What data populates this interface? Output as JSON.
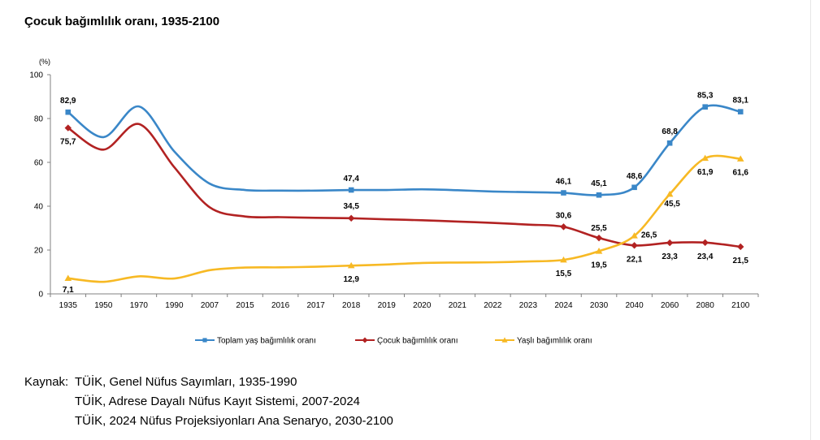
{
  "title": "Çocuk bağımlılık oranı, 1935-2100",
  "unit_label": "(%)",
  "source": {
    "label": "Kaynak:",
    "lines": [
      "TÜİK, Genel Nüfus Sayımları, 1935-1990",
      "TÜİK, Adrese Dayalı Nüfus Kayıt Sistemi, 2007-2024",
      "TÜİK, 2024 Nüfus Projeksiyonları Ana Senaryo, 2030-2100"
    ]
  },
  "chart_data": {
    "type": "line",
    "title": "Çocuk bağımlılık oranı, 1935-2100",
    "xlabel": "",
    "ylabel": "(%)",
    "ylim": [
      0,
      100
    ],
    "yticks": [
      0,
      20,
      40,
      60,
      80,
      100
    ],
    "grid": false,
    "legend_position": "bottom",
    "categories": [
      "1935",
      "1950",
      "1970",
      "1990",
      "2007",
      "2015",
      "2016",
      "2017",
      "2018",
      "2019",
      "2020",
      "2021",
      "2022",
      "2023",
      "2024",
      "2030",
      "2040",
      "2060",
      "2080",
      "2100"
    ],
    "series": [
      {
        "name": "Toplam yaş bağımlılık oranı",
        "color": "#3a87c8",
        "marker": "square",
        "values": [
          82.9,
          71.5,
          85.5,
          65.0,
          50.3,
          47.4,
          47.1,
          47.1,
          47.4,
          47.4,
          47.7,
          47.3,
          46.7,
          46.4,
          46.1,
          45.1,
          48.6,
          68.8,
          85.3,
          83.1
        ],
        "labels": {
          "0": "82,9",
          "8": "47,4",
          "14": "46,1",
          "15": "45,1",
          "16": "48,6",
          "17": "68,8",
          "18": "85,3",
          "19": "83,1"
        }
      },
      {
        "name": "Çocuk bağımlılık oranı",
        "color": "#b22222",
        "marker": "diamond",
        "values": [
          75.7,
          65.8,
          77.5,
          57.8,
          39.5,
          35.3,
          35.0,
          34.7,
          34.5,
          34.0,
          33.6,
          33.0,
          32.4,
          31.6,
          30.6,
          25.5,
          22.1,
          23.3,
          23.4,
          21.5
        ],
        "labels": {
          "0": "75,7",
          "8": "34,5",
          "14": "30,6",
          "15": "25,5",
          "16": "22,1",
          "17": "23,3",
          "18": "23,4",
          "19": "21,5"
        }
      },
      {
        "name": "Yaşlı bağımlılık oranı",
        "color": "#f7b924",
        "marker": "triangle",
        "values": [
          7.1,
          5.5,
          8.0,
          7.0,
          10.8,
          12.0,
          12.1,
          12.4,
          12.9,
          13.4,
          14.1,
          14.3,
          14.4,
          14.8,
          15.5,
          19.5,
          26.5,
          45.5,
          61.9,
          61.6
        ],
        "labels": {
          "0": "7,1",
          "8": "12,9",
          "14": "15,5",
          "15": "19,5",
          "16": "26,5",
          "17": "45,5",
          "18": "61,9",
          "19": "61,6"
        }
      }
    ]
  }
}
